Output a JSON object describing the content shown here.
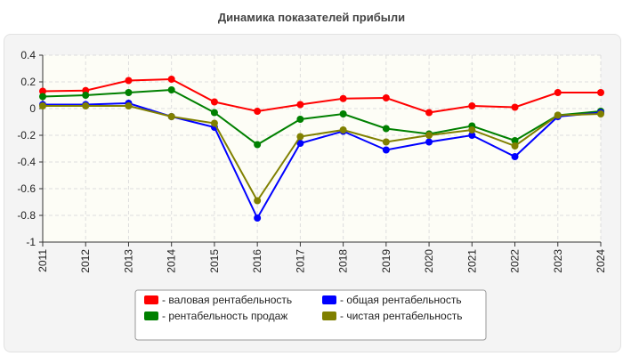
{
  "chart_data": {
    "type": "line",
    "title": "Динамика показателей прибыли",
    "x": [
      "2011",
      "2012",
      "2013",
      "2014",
      "2015",
      "2016",
      "2017",
      "2018",
      "2019",
      "2020",
      "2021",
      "2022",
      "2023",
      "2024"
    ],
    "ylim": [
      -1,
      0.4
    ],
    "yticks": [
      "0.4",
      "0.2",
      "0",
      "-0.2",
      "-0.4",
      "-0.6",
      "-0.8",
      "-1"
    ],
    "grid": true,
    "legend_position": "bottom",
    "series": [
      {
        "name": "- валовая рентабельность",
        "color": "#ff0000",
        "values": [
          0.13,
          0.135,
          0.21,
          0.22,
          0.05,
          -0.02,
          0.03,
          0.075,
          0.08,
          -0.03,
          0.02,
          0.01,
          0.12,
          0.12
        ]
      },
      {
        "name": "- общая рентабельность",
        "color": "#0000ff",
        "values": [
          0.03,
          0.03,
          0.04,
          -0.06,
          -0.14,
          -0.82,
          -0.26,
          -0.17,
          -0.31,
          -0.25,
          -0.2,
          -0.36,
          -0.06,
          -0.03
        ]
      },
      {
        "name": "- рентабельность продаж",
        "color": "#008000",
        "values": [
          0.09,
          0.1,
          0.12,
          0.14,
          -0.03,
          -0.27,
          -0.08,
          -0.04,
          -0.15,
          -0.19,
          -0.13,
          -0.24,
          -0.05,
          -0.02
        ]
      },
      {
        "name": "- чистая рентабельность",
        "color": "#808000",
        "values": [
          0.02,
          0.02,
          0.02,
          -0.06,
          -0.11,
          -0.69,
          -0.21,
          -0.16,
          -0.25,
          -0.2,
          -0.16,
          -0.28,
          -0.05,
          -0.04
        ]
      }
    ]
  }
}
